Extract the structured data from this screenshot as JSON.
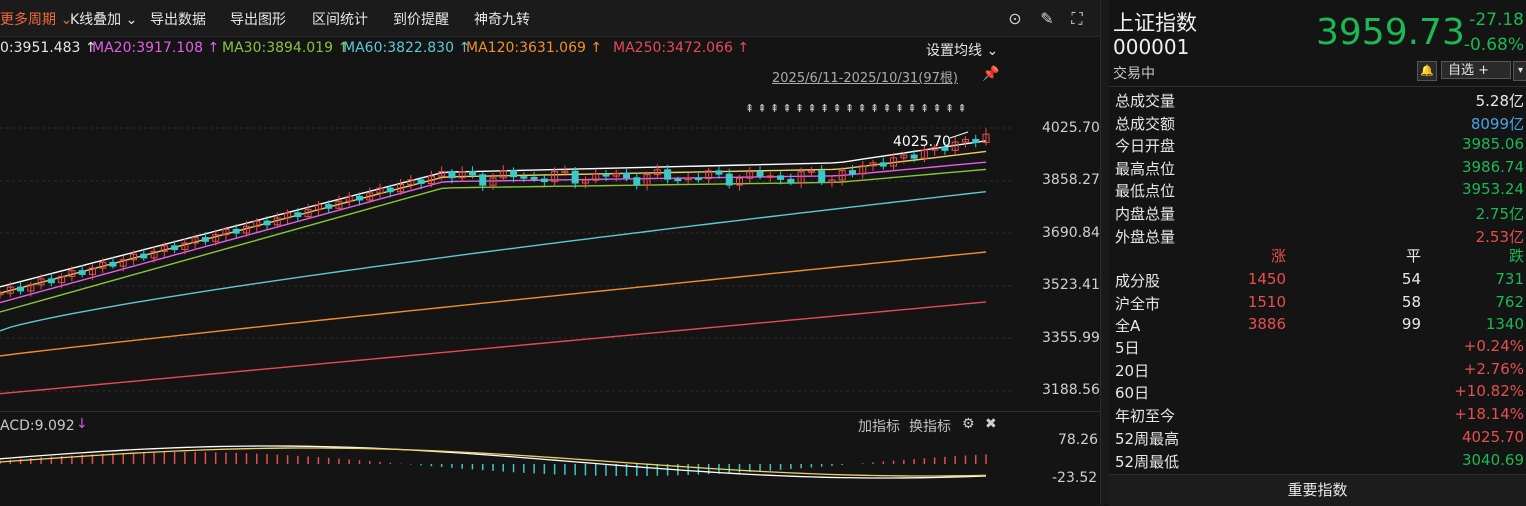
{
  "toolbar": {
    "period_label": "更多周期",
    "kline_overlay": "K线叠加",
    "export_data": "导出数据",
    "export_chart": "导出图形",
    "range_stats": "区间统计",
    "price_alert": "到价提醒",
    "magic_nine": "神奇九转"
  },
  "ma_legend": [
    {
      "text": "0:3951.483 ↑",
      "color": "#e6e6e6"
    },
    {
      "text": "MA20:3917.108 ↑",
      "color": "#e35fe6"
    },
    {
      "text": "MA30:3894.019 ↑",
      "color": "#8ac43a"
    },
    {
      "text": "MA60:3822.830 ↑",
      "color": "#5ec8d8"
    },
    {
      "text": "MA120:3631.069 ↑",
      "color": "#f0902a"
    },
    {
      "text": "MA250:3472.066 ↑",
      "color": "#e64a5a"
    }
  ],
  "settings_ma": "设置均线",
  "date_range": "2025/6/11-2025/10/31(97根)",
  "price_axis": [
    "4025.70",
    "3858.27",
    "3690.84",
    "3523.41",
    "3355.99",
    "3188.56"
  ],
  "high_marker": "4025.70",
  "macd": {
    "title": "ACD:9.092",
    "arrow": "↓",
    "axis": [
      "78.26",
      "-23.52"
    ],
    "add_indicator": "加指标",
    "switch_indicator": "换指标"
  },
  "quote": {
    "name": "上证指数",
    "code": "000001",
    "status": "交易中",
    "price": "3959.73",
    "change": "-27.18",
    "change_pct": "-0.68%",
    "watchlist": "自选 +",
    "stats": [
      {
        "label": "总成交量",
        "value": "5.28亿",
        "color": "neu"
      },
      {
        "label": "总成交额",
        "value": "8099亿",
        "color": "blue"
      },
      {
        "label": "今日开盘",
        "value": "3985.06",
        "color": "dn"
      },
      {
        "label": "最高点位",
        "value": "3986.74",
        "color": "dn"
      },
      {
        "label": "最低点位",
        "value": "3953.24",
        "color": "dn"
      },
      {
        "label": "内盘总量",
        "value": "2.75亿",
        "color": "dn"
      },
      {
        "label": "外盘总量",
        "value": "2.53亿",
        "color": "up"
      }
    ],
    "breadth_headers": [
      "涨",
      "平",
      "跌"
    ],
    "breadth": [
      {
        "label": "成分股",
        "up": "1450",
        "flat": "54",
        "down": "731"
      },
      {
        "label": "沪全市",
        "up": "1510",
        "flat": "58",
        "down": "762"
      },
      {
        "label": "全A",
        "up": "3886",
        "flat": "99",
        "down": "1340"
      }
    ],
    "periods": [
      {
        "label": "5日",
        "value": "+0.24%",
        "color": "up"
      },
      {
        "label": "20日",
        "value": "+2.76%",
        "color": "up"
      },
      {
        "label": "60日",
        "value": "+10.82%",
        "color": "up"
      },
      {
        "label": "年初至今",
        "value": "+18.14%",
        "color": "up"
      },
      {
        "label": "52周最高",
        "value": "4025.70",
        "color": "up"
      },
      {
        "label": "52周最低",
        "value": "3040.69",
        "color": "dn"
      }
    ],
    "key_index_button": "重要指数"
  }
}
